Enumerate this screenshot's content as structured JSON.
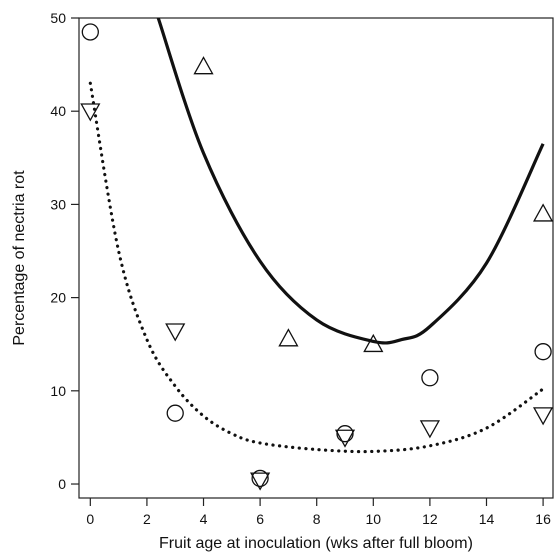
{
  "chart_data": {
    "type": "scatter",
    "xlabel": "Fruit age at inoculation (wks after full bloom)",
    "ylabel": "Percentage of nectria rot",
    "xlim": [
      -0.4,
      16.35
    ],
    "ylim": [
      -1.5,
      50
    ],
    "x_ticks": [
      0,
      2,
      4,
      6,
      8,
      10,
      12,
      14,
      16
    ],
    "y_ticks": [
      0,
      10,
      20,
      30,
      40,
      50
    ],
    "grid": false,
    "series": [
      {
        "marker": "circle",
        "points": [
          {
            "x": 0,
            "y": 48.5
          },
          {
            "x": 3,
            "y": 7.6
          },
          {
            "x": 6,
            "y": 0.6
          },
          {
            "x": 9,
            "y": 5.4
          },
          {
            "x": 12,
            "y": 11.4
          },
          {
            "x": 16,
            "y": 14.2
          }
        ]
      },
      {
        "marker": "triangle-up",
        "points": [
          {
            "x": 4,
            "y": 44.8
          },
          {
            "x": 7,
            "y": 15.6
          },
          {
            "x": 10,
            "y": 15.0
          },
          {
            "x": 16,
            "y": 29.0
          }
        ]
      },
      {
        "marker": "triangle-down",
        "points": [
          {
            "x": 0,
            "y": 40.0
          },
          {
            "x": 3,
            "y": 16.4
          },
          {
            "x": 6,
            "y": 0.4
          },
          {
            "x": 9,
            "y": 5.0
          },
          {
            "x": 12,
            "y": 6.0
          },
          {
            "x": 16,
            "y": 7.4
          }
        ]
      }
    ],
    "fitted_curves": [
      {
        "style": "solid",
        "points": [
          {
            "x": 2.4,
            "y": 50.0
          },
          {
            "x": 4,
            "y": 35.5
          },
          {
            "x": 6,
            "y": 23.9
          },
          {
            "x": 8,
            "y": 17.6
          },
          {
            "x": 10,
            "y": 15.3
          },
          {
            "x": 11,
            "y": 15.5
          },
          {
            "x": 12,
            "y": 16.9
          },
          {
            "x": 14,
            "y": 23.7
          },
          {
            "x": 16,
            "y": 36.5
          }
        ]
      },
      {
        "style": "dotted",
        "points": [
          {
            "x": 0,
            "y": 43.0
          },
          {
            "x": 1,
            "y": 25.0
          },
          {
            "x": 2,
            "y": 15.5
          },
          {
            "x": 3,
            "y": 10.5
          },
          {
            "x": 4,
            "y": 7.3
          },
          {
            "x": 5,
            "y": 5.4
          },
          {
            "x": 6,
            "y": 4.4
          },
          {
            "x": 8,
            "y": 3.7
          },
          {
            "x": 10,
            "y": 3.5
          },
          {
            "x": 12,
            "y": 4.1
          },
          {
            "x": 14,
            "y": 6.0
          },
          {
            "x": 16,
            "y": 10.2
          }
        ]
      }
    ]
  }
}
